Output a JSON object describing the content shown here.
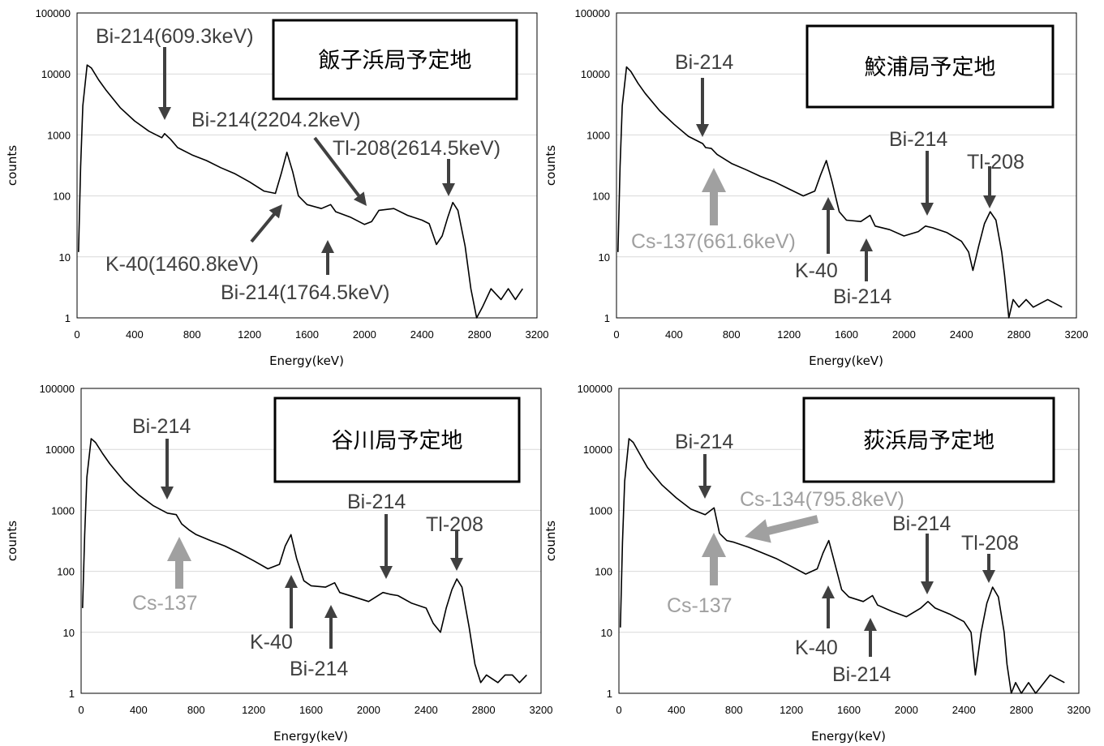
{
  "chart_data": [
    {
      "type": "line",
      "title": "飯子浜局予定地",
      "xlabel": "Energy(keV)",
      "ylabel": "counts",
      "xlim": [
        0,
        3200
      ],
      "ylim": [
        1,
        100000
      ],
      "yscale": "log",
      "xticks": [
        "0",
        "400",
        "800",
        "1200",
        "1600",
        "2000",
        "2400",
        "2800",
        "3200"
      ],
      "yticks": [
        "1",
        "10",
        "100",
        "1000",
        "10000",
        "100000"
      ],
      "spectrum": [
        [
          10,
          12
        ],
        [
          25,
          300
        ],
        [
          40,
          3000
        ],
        [
          70,
          14000
        ],
        [
          100,
          12500
        ],
        [
          150,
          8000
        ],
        [
          200,
          5500
        ],
        [
          300,
          2800
        ],
        [
          400,
          1700
        ],
        [
          500,
          1150
        ],
        [
          590,
          900
        ],
        [
          609,
          1050
        ],
        [
          650,
          850
        ],
        [
          700,
          620
        ],
        [
          800,
          470
        ],
        [
          900,
          380
        ],
        [
          1000,
          290
        ],
        [
          1100,
          230
        ],
        [
          1200,
          170
        ],
        [
          1300,
          120
        ],
        [
          1380,
          110
        ],
        [
          1420,
          230
        ],
        [
          1460,
          520
        ],
        [
          1500,
          250
        ],
        [
          1540,
          100
        ],
        [
          1600,
          72
        ],
        [
          1700,
          62
        ],
        [
          1764,
          72
        ],
        [
          1800,
          55
        ],
        [
          1900,
          45
        ],
        [
          2000,
          34
        ],
        [
          2050,
          38
        ],
        [
          2100,
          58
        ],
        [
          2204,
          62
        ],
        [
          2300,
          48
        ],
        [
          2400,
          40
        ],
        [
          2450,
          35
        ],
        [
          2500,
          16
        ],
        [
          2540,
          22
        ],
        [
          2580,
          45
        ],
        [
          2614,
          78
        ],
        [
          2650,
          58
        ],
        [
          2700,
          15
        ],
        [
          2740,
          3
        ],
        [
          2780,
          1
        ],
        [
          2820,
          1.5
        ],
        [
          2880,
          3
        ],
        [
          2950,
          2
        ],
        [
          3000,
          3
        ],
        [
          3050,
          2
        ],
        [
          3100,
          3
        ]
      ],
      "annotations": [
        {
          "text": "Bi-214(609.3keV)",
          "color": "#404040"
        },
        {
          "text": "Bi-214(2204.2keV)",
          "color": "#404040"
        },
        {
          "text": "Tl-208(2614.5keV)",
          "color": "#404040"
        },
        {
          "text": "K-40(1460.8keV)",
          "color": "#404040"
        },
        {
          "text": "Bi-214(1764.5keV)",
          "color": "#404040"
        }
      ]
    },
    {
      "type": "line",
      "title": "鮫浦局予定地",
      "xlabel": "Energy(keV)",
      "ylabel": "counts",
      "xlim": [
        0,
        3200
      ],
      "ylim": [
        1,
        100000
      ],
      "yscale": "log",
      "xticks": [
        "0",
        "400",
        "800",
        "1200",
        "1600",
        "2000",
        "2400",
        "2800",
        "3200"
      ],
      "yticks": [
        "1",
        "10",
        "100",
        "1000",
        "10000",
        "100000"
      ],
      "spectrum": [
        [
          10,
          12
        ],
        [
          25,
          300
        ],
        [
          40,
          3000
        ],
        [
          70,
          13000
        ],
        [
          100,
          11000
        ],
        [
          150,
          7000
        ],
        [
          200,
          4800
        ],
        [
          300,
          2500
        ],
        [
          400,
          1500
        ],
        [
          500,
          950
        ],
        [
          600,
          720
        ],
        [
          620,
          620
        ],
        [
          660,
          600
        ],
        [
          700,
          480
        ],
        [
          800,
          340
        ],
        [
          900,
          270
        ],
        [
          1000,
          210
        ],
        [
          1100,
          170
        ],
        [
          1200,
          130
        ],
        [
          1300,
          100
        ],
        [
          1380,
          120
        ],
        [
          1420,
          220
        ],
        [
          1460,
          380
        ],
        [
          1500,
          170
        ],
        [
          1550,
          55
        ],
        [
          1600,
          40
        ],
        [
          1700,
          38
        ],
        [
          1764,
          48
        ],
        [
          1800,
          32
        ],
        [
          1900,
          28
        ],
        [
          2000,
          22
        ],
        [
          2100,
          26
        ],
        [
          2150,
          32
        ],
        [
          2200,
          30
        ],
        [
          2300,
          25
        ],
        [
          2400,
          18
        ],
        [
          2450,
          12
        ],
        [
          2480,
          6
        ],
        [
          2520,
          15
        ],
        [
          2560,
          35
        ],
        [
          2600,
          55
        ],
        [
          2640,
          40
        ],
        [
          2680,
          12
        ],
        [
          2700,
          5
        ],
        [
          2730,
          1
        ],
        [
          2760,
          2
        ],
        [
          2800,
          1.5
        ],
        [
          2850,
          2
        ],
        [
          2900,
          1.5
        ],
        [
          3000,
          2
        ],
        [
          3100,
          1.5
        ]
      ],
      "annotations": [
        {
          "text": "Bi-214",
          "color": "#404040"
        },
        {
          "text": "Bi-214",
          "color": "#404040"
        },
        {
          "text": "Tl-208",
          "color": "#404040"
        },
        {
          "text": "Cs-137(661.6keV)",
          "color": "#a0a0a0"
        },
        {
          "text": "K-40",
          "color": "#404040"
        },
        {
          "text": "Bi-214",
          "color": "#404040"
        }
      ]
    },
    {
      "type": "line",
      "title": "谷川局予定地",
      "xlabel": "Energy(keV)",
      "ylabel": "counts",
      "xlim": [
        0,
        3200
      ],
      "ylim": [
        1,
        100000
      ],
      "yscale": "log",
      "xticks": [
        "0",
        "400",
        "800",
        "1200",
        "1600",
        "2000",
        "2400",
        "2800",
        "3200"
      ],
      "yticks": [
        "1",
        "10",
        "100",
        "1000",
        "10000",
        "100000"
      ],
      "spectrum": [
        [
          10,
          25
        ],
        [
          25,
          400
        ],
        [
          40,
          3500
        ],
        [
          70,
          15000
        ],
        [
          100,
          13000
        ],
        [
          150,
          8500
        ],
        [
          200,
          5800
        ],
        [
          300,
          3000
        ],
        [
          400,
          1800
        ],
        [
          500,
          1200
        ],
        [
          600,
          900
        ],
        [
          662,
          850
        ],
        [
          700,
          600
        ],
        [
          750,
          480
        ],
        [
          800,
          400
        ],
        [
          900,
          320
        ],
        [
          1000,
          260
        ],
        [
          1100,
          200
        ],
        [
          1200,
          150
        ],
        [
          1300,
          110
        ],
        [
          1380,
          130
        ],
        [
          1420,
          260
        ],
        [
          1460,
          400
        ],
        [
          1500,
          160
        ],
        [
          1550,
          70
        ],
        [
          1600,
          58
        ],
        [
          1700,
          55
        ],
        [
          1764,
          65
        ],
        [
          1800,
          45
        ],
        [
          1900,
          38
        ],
        [
          2000,
          32
        ],
        [
          2100,
          45
        ],
        [
          2150,
          42
        ],
        [
          2204,
          40
        ],
        [
          2300,
          30
        ],
        [
          2400,
          25
        ],
        [
          2450,
          14
        ],
        [
          2500,
          10
        ],
        [
          2540,
          25
        ],
        [
          2580,
          50
        ],
        [
          2614,
          75
        ],
        [
          2650,
          55
        ],
        [
          2700,
          12
        ],
        [
          2740,
          3
        ],
        [
          2780,
          1.5
        ],
        [
          2820,
          2
        ],
        [
          2900,
          1.5
        ],
        [
          2950,
          2
        ],
        [
          3000,
          2
        ],
        [
          3050,
          1.5
        ],
        [
          3100,
          2
        ]
      ],
      "annotations": [
        {
          "text": "Bi-214",
          "color": "#404040"
        },
        {
          "text": "Bi-214",
          "color": "#404040"
        },
        {
          "text": "Tl-208",
          "color": "#404040"
        },
        {
          "text": "Cs-137",
          "color": "#a0a0a0"
        },
        {
          "text": "K-40",
          "color": "#404040"
        },
        {
          "text": "Bi-214",
          "color": "#404040"
        }
      ]
    },
    {
      "type": "line",
      "title": "荻浜局予定地",
      "xlabel": "Energy(keV)",
      "ylabel": "counts",
      "xlim": [
        0,
        3200
      ],
      "ylim": [
        1,
        100000
      ],
      "yscale": "log",
      "xticks": [
        "0",
        "400",
        "800",
        "1200",
        "1600",
        "2000",
        "2400",
        "2800",
        "3200"
      ],
      "yticks": [
        "1",
        "10",
        "100",
        "1000",
        "10000",
        "100000"
      ],
      "spectrum": [
        [
          10,
          12
        ],
        [
          25,
          300
        ],
        [
          40,
          3000
        ],
        [
          70,
          15000
        ],
        [
          100,
          13000
        ],
        [
          150,
          8000
        ],
        [
          200,
          5000
        ],
        [
          300,
          2600
        ],
        [
          400,
          1600
        ],
        [
          500,
          1050
        ],
        [
          600,
          850
        ],
        [
          662,
          1100
        ],
        [
          700,
          420
        ],
        [
          750,
          320
        ],
        [
          800,
          300
        ],
        [
          900,
          250
        ],
        [
          1000,
          200
        ],
        [
          1100,
          160
        ],
        [
          1200,
          120
        ],
        [
          1300,
          90
        ],
        [
          1380,
          110
        ],
        [
          1420,
          200
        ],
        [
          1460,
          320
        ],
        [
          1500,
          140
        ],
        [
          1550,
          50
        ],
        [
          1600,
          38
        ],
        [
          1700,
          32
        ],
        [
          1764,
          40
        ],
        [
          1800,
          28
        ],
        [
          1900,
          22
        ],
        [
          2000,
          18
        ],
        [
          2100,
          25
        ],
        [
          2150,
          32
        ],
        [
          2200,
          25
        ],
        [
          2300,
          20
        ],
        [
          2400,
          15
        ],
        [
          2450,
          10
        ],
        [
          2480,
          2
        ],
        [
          2520,
          10
        ],
        [
          2560,
          30
        ],
        [
          2600,
          55
        ],
        [
          2640,
          38
        ],
        [
          2680,
          10
        ],
        [
          2700,
          3
        ],
        [
          2730,
          1
        ],
        [
          2760,
          1.5
        ],
        [
          2800,
          1
        ],
        [
          2850,
          1.5
        ],
        [
          2900,
          1
        ],
        [
          3000,
          2
        ],
        [
          3100,
          1.5
        ]
      ],
      "annotations": [
        {
          "text": "Bi-214",
          "color": "#404040"
        },
        {
          "text": "Cs-134(795.8keV)",
          "color": "#a0a0a0"
        },
        {
          "text": "Bi-214",
          "color": "#404040"
        },
        {
          "text": "Tl-208",
          "color": "#404040"
        },
        {
          "text": "Cs-137",
          "color": "#a0a0a0"
        },
        {
          "text": "K-40",
          "color": "#404040"
        },
        {
          "text": "Bi-214",
          "color": "#404040"
        }
      ]
    }
  ]
}
